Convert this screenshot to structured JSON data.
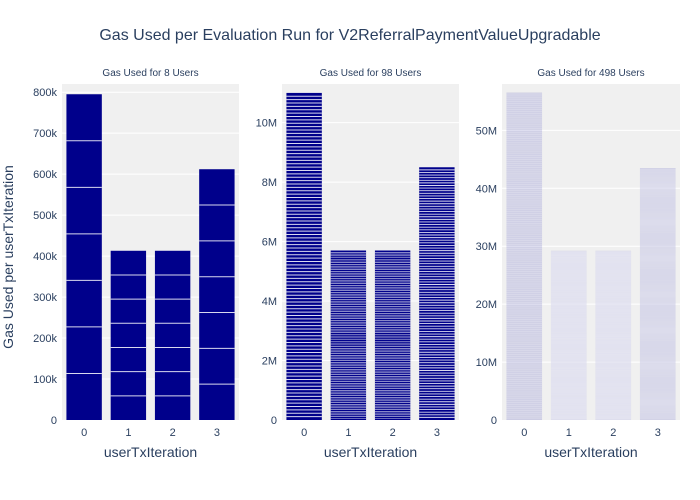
{
  "chart_data": {
    "type": "bar",
    "title": "Gas Used per Evaluation Run for V2ReferralPaymentValueUpgradable",
    "ylabel": "Gas Used per userTxIteration",
    "colors": {
      "background": "#ffffff",
      "plot_bg": "#f0f0f0",
      "grid": "#ffffff",
      "text": "#2a3f5f"
    },
    "subplots": [
      {
        "title": "Gas Used for 8 Users",
        "xlabel": "userTxIteration",
        "categories": [
          "0",
          "1",
          "2",
          "3"
        ],
        "values": [
          795000,
          413000,
          413000,
          612000
        ],
        "segments": 7,
        "ylim": [
          0,
          820000
        ],
        "yticks": [
          0,
          100000,
          200000,
          300000,
          400000,
          500000,
          600000,
          700000,
          800000
        ],
        "ytick_labels": [
          "0",
          "100k",
          "200k",
          "300k",
          "400k",
          "500k",
          "600k",
          "700k",
          "800k"
        ],
        "bar_color": "#00008b",
        "bar_opacity": 1
      },
      {
        "title": "Gas Used for 98 Users",
        "xlabel": "userTxIteration",
        "categories": [
          "0",
          "1",
          "2",
          "3"
        ],
        "values": [
          11000000,
          5700000,
          5700000,
          8500000
        ],
        "segments": 97,
        "ylim": [
          0,
          11300000
        ],
        "yticks": [
          0,
          2000000,
          4000000,
          6000000,
          8000000,
          10000000
        ],
        "ytick_labels": [
          "0",
          "2M",
          "4M",
          "6M",
          "8M",
          "10M"
        ],
        "bar_color": "#00008b",
        "bar_opacity": 1
      },
      {
        "title": "Gas Used for 498 Users",
        "xlabel": "userTxIteration",
        "categories": [
          "0",
          "1",
          "2",
          "3"
        ],
        "values": [
          56500000,
          29200000,
          29200000,
          43500000
        ],
        "segments": 497,
        "ylim": [
          0,
          58000000
        ],
        "yticks": [
          0,
          10000000,
          20000000,
          30000000,
          40000000,
          50000000
        ],
        "ytick_labels": [
          "0",
          "10M",
          "20M",
          "30M",
          "40M",
          "50M"
        ],
        "bar_color": "#00008b",
        "bar_opacity": 0.22
      }
    ]
  }
}
